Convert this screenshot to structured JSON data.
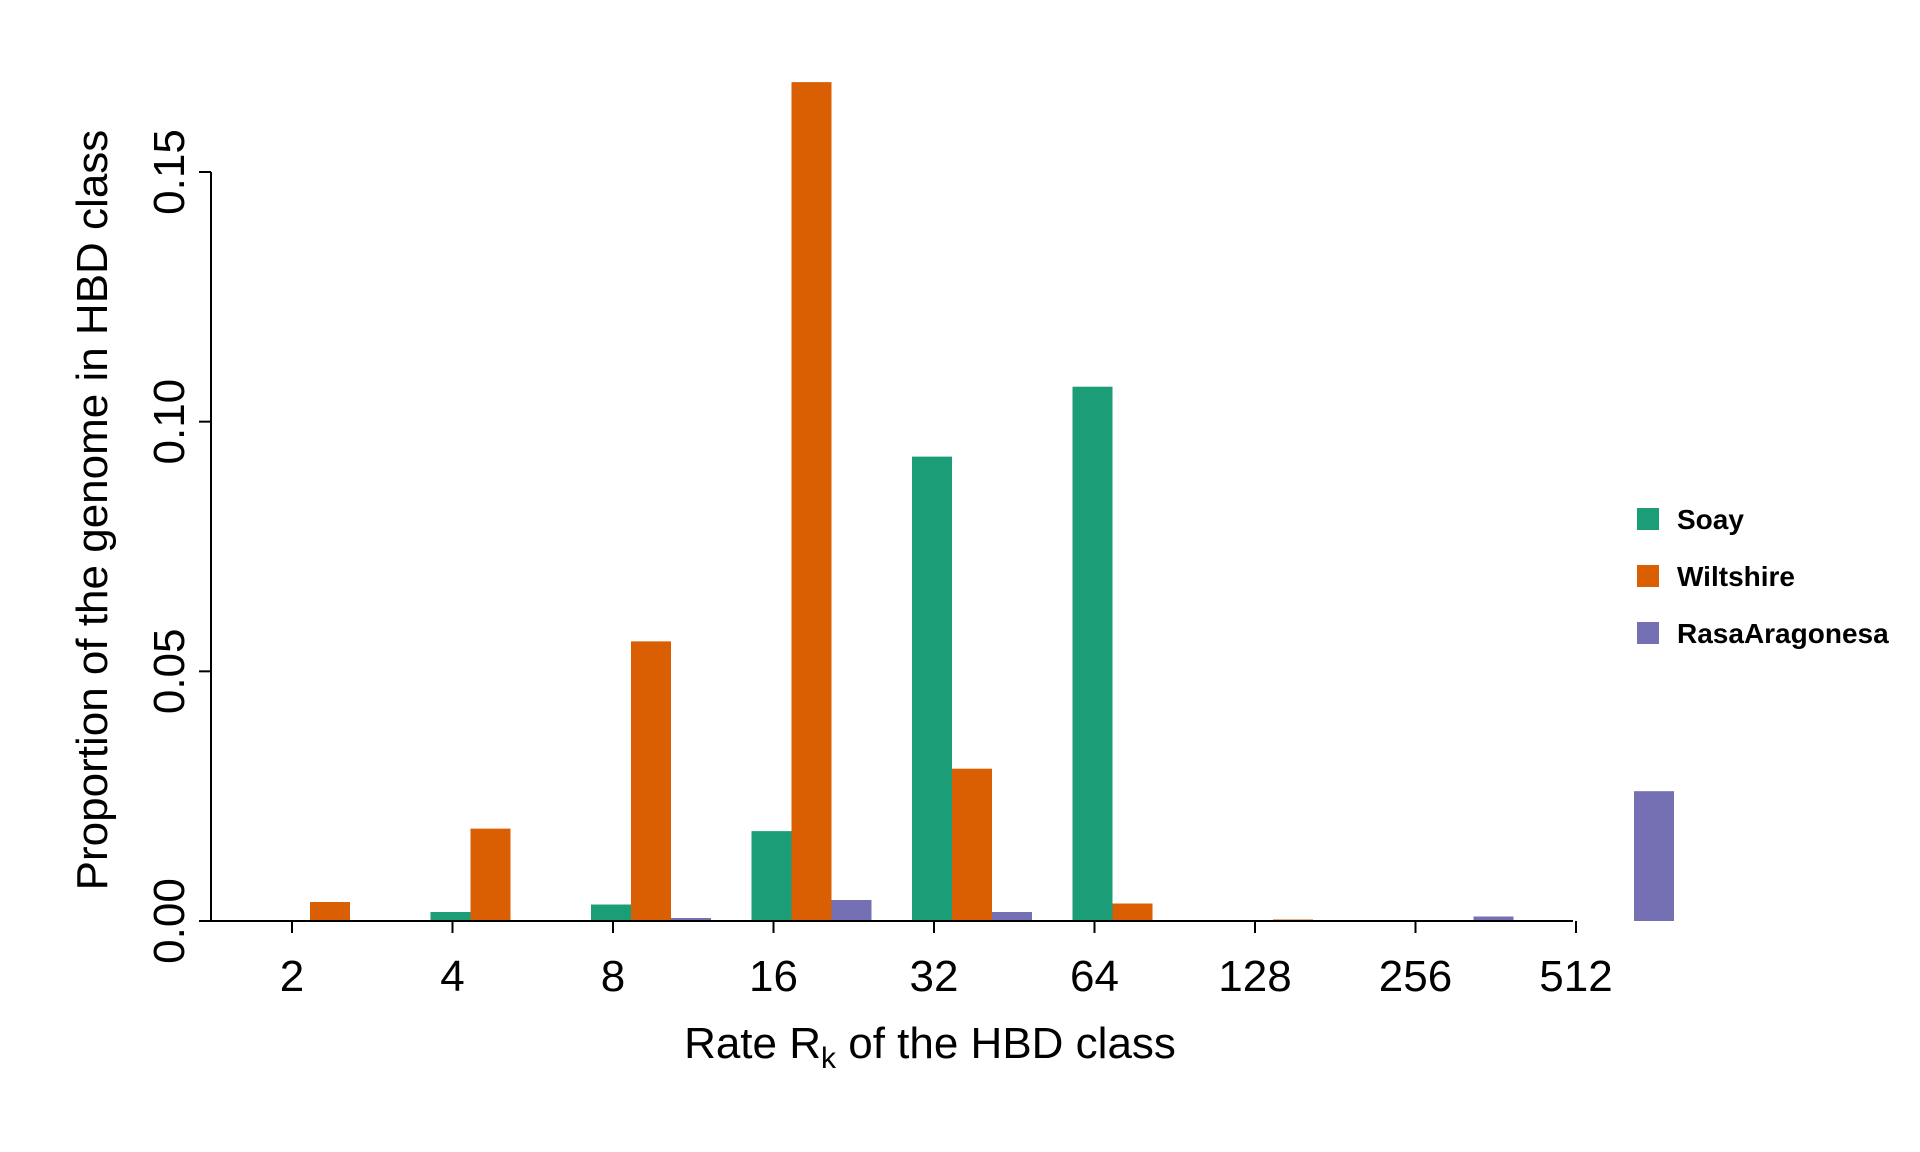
{
  "chart_data": {
    "type": "bar",
    "categories": [
      "2",
      "4",
      "8",
      "16",
      "32",
      "64",
      "128",
      "256",
      "512"
    ],
    "series": [
      {
        "name": "Soay",
        "color": "#1b9e77",
        "values": [
          0.0,
          0.0018,
          0.0033,
          0.018,
          0.093,
          0.107,
          0.0,
          0.0,
          0.0
        ]
      },
      {
        "name": "Wiltshire",
        "color": "#d95f02",
        "values": [
          0.0038,
          0.0185,
          0.056,
          0.168,
          0.0305,
          0.0035,
          0.0003,
          0.0,
          0.0
        ]
      },
      {
        "name": "RasaAragonesa",
        "color": "#7570b3",
        "values": [
          0.0,
          0.0,
          0.0006,
          0.0042,
          0.0018,
          0.0,
          0.0,
          0.0009,
          0.026
        ]
      }
    ],
    "xlabel_main": "Rate R",
    "xlabel_sub": "k",
    "xlabel_rest": " of the HBD class",
    "ylabel": "Proportion of the genome in HBD class",
    "yticks": [
      "0.00",
      "0.05",
      "0.10",
      "0.15"
    ],
    "ytick_values": [
      0.0,
      0.05,
      0.1,
      0.15
    ],
    "ylim": [
      0,
      0.17
    ],
    "legend_position": "right",
    "grid": false
  }
}
